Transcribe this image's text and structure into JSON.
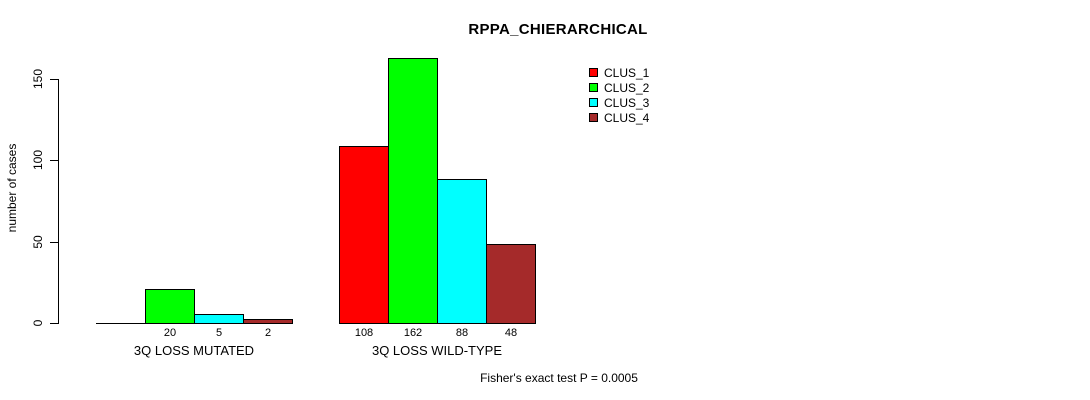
{
  "chart_data": {
    "type": "bar",
    "title": "RPPA_CHIERARCHICAL",
    "ylabel": "number of cases",
    "xlabel": "",
    "ylim": [
      0,
      150
    ],
    "yticks": [
      0,
      50,
      100,
      150
    ],
    "grid": false,
    "legend_position": "top-right",
    "groups": [
      "3Q LOSS MUTATED",
      "3Q LOSS WILD-TYPE"
    ],
    "series": [
      {
        "name": "CLUS_1",
        "color": "#ff0000",
        "values": [
          0,
          108
        ]
      },
      {
        "name": "CLUS_2",
        "color": "#00ff00",
        "values": [
          20,
          162
        ]
      },
      {
        "name": "CLUS_3",
        "color": "#00ffff",
        "values": [
          5,
          88
        ]
      },
      {
        "name": "CLUS_4",
        "color": "#a52a2a",
        "values": [
          2,
          48
        ]
      }
    ],
    "bar_value_labels": [
      [
        "",
        "20",
        "5",
        "2"
      ],
      [
        "108",
        "162",
        "88",
        "48"
      ]
    ],
    "annotation": "Fisher's exact test P = 0.0005"
  }
}
